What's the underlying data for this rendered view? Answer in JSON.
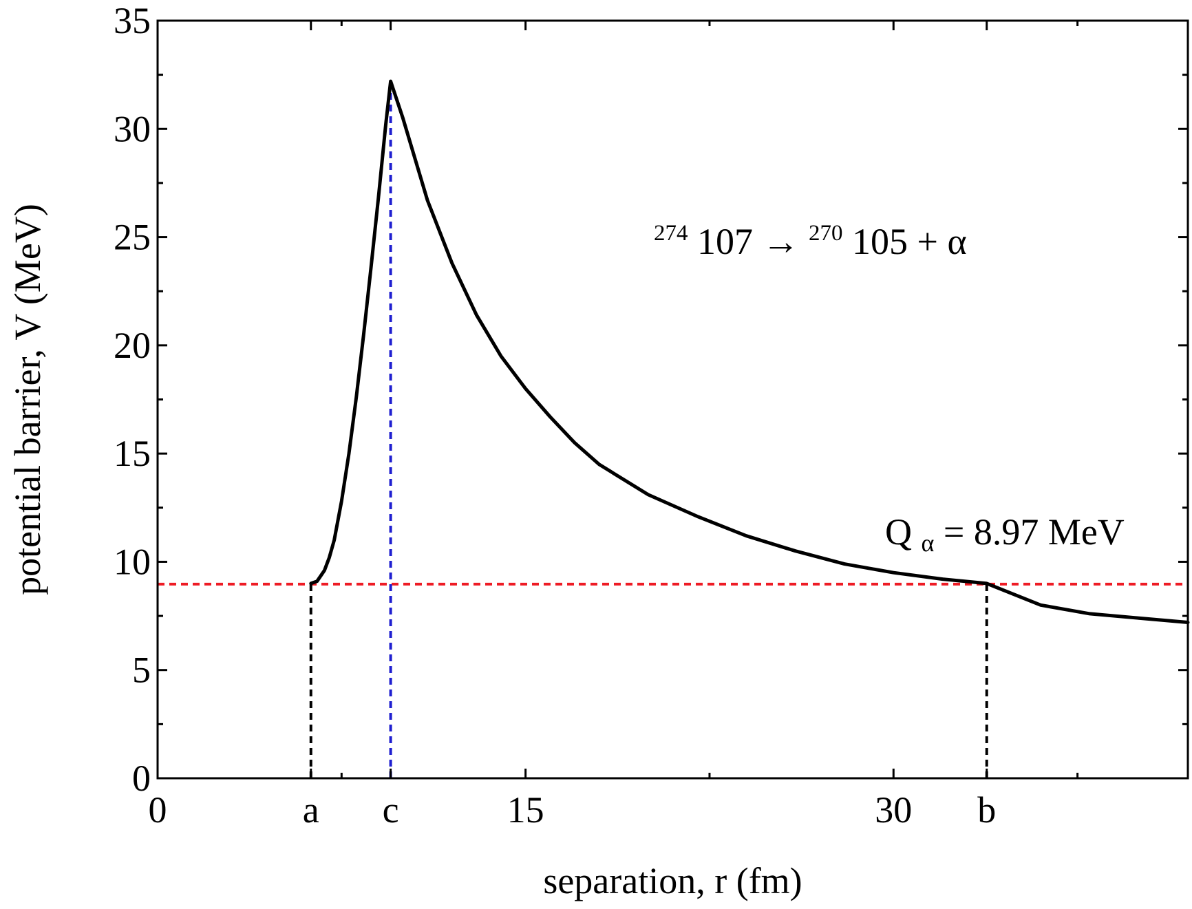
{
  "chart_data": {
    "type": "line",
    "xlabel": "separation, r (fm)",
    "ylabel": "potential barrier, V (MeV)",
    "xlim": [
      0,
      42
    ],
    "ylim": [
      0,
      35
    ],
    "grid": false,
    "x_ticks": [
      {
        "value": 0,
        "label": "0"
      },
      {
        "value": 6.25,
        "label": "a"
      },
      {
        "value": 9.5,
        "label": "c"
      },
      {
        "value": 15,
        "label": "15"
      },
      {
        "value": 30,
        "label": "30"
      },
      {
        "value": 33.8,
        "label": "b"
      }
    ],
    "x_minor_ticks": [
      7.5,
      22.5,
      37.5
    ],
    "y_ticks": [
      0,
      5,
      10,
      15,
      20,
      25,
      30,
      35
    ],
    "y_minor_ticks": [
      2.5,
      7.5,
      12.5,
      17.5,
      22.5,
      27.5,
      32.5
    ],
    "series": [
      {
        "color": "#000000",
        "style": "solid",
        "x": [
          6.25,
          6.5,
          6.8,
          7.0,
          7.2,
          7.5,
          7.8,
          8.1,
          8.4,
          8.7,
          9.0,
          9.3,
          9.5,
          10,
          11,
          12,
          13,
          14,
          15,
          16,
          17,
          18,
          20,
          22,
          24,
          26,
          28,
          30,
          32,
          33.8,
          36,
          38,
          40,
          42
        ],
        "y": [
          9.0,
          9.1,
          9.6,
          10.2,
          11.0,
          12.8,
          15.0,
          17.6,
          20.5,
          23.6,
          26.8,
          30.2,
          32.2,
          30.5,
          26.7,
          23.8,
          21.4,
          19.5,
          18.0,
          16.7,
          15.5,
          14.5,
          13.1,
          12.1,
          11.2,
          10.5,
          9.9,
          9.5,
          9.2,
          9.0,
          8.0,
          7.6,
          7.4,
          7.2
        ]
      }
    ],
    "reference_lines": [
      {
        "orientation": "horizontal",
        "y": 8.97,
        "from_x": 0,
        "to_x": 42,
        "color": "#ee1c25",
        "style": "dashed"
      },
      {
        "orientation": "vertical",
        "x": 6.25,
        "from_y": 0,
        "to_y": 8.97,
        "color": "#000000",
        "style": "dashed"
      },
      {
        "orientation": "vertical",
        "x": 9.5,
        "from_y": 0,
        "to_y": 32.2,
        "color": "#1f1fd0",
        "style": "dashed"
      },
      {
        "orientation": "vertical",
        "x": 33.8,
        "from_y": 0,
        "to_y": 8.97,
        "color": "#000000",
        "style": "dashed"
      }
    ],
    "annotations": {
      "reaction": {
        "parent_mass": "274",
        "parent_z": "107",
        "arrow": " → ",
        "daughter_mass": "270",
        "daughter_z": "105",
        "emitted": " + α"
      },
      "q_value": {
        "symbol": "Q",
        "subscript": "α",
        "value": " = 8.97 MeV"
      }
    }
  }
}
